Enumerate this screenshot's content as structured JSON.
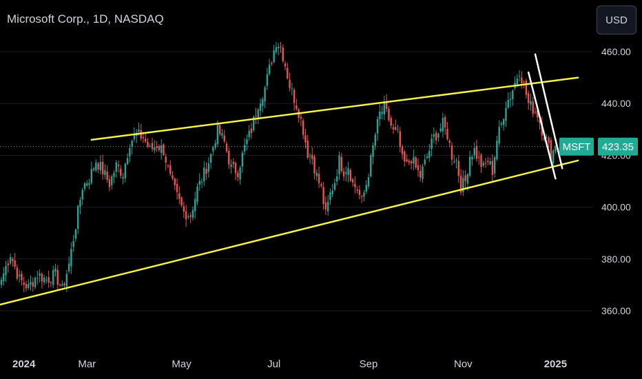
{
  "header": {
    "title": "Microsoft Corp., 1D, NASDAQ",
    "currency": "USD"
  },
  "colors": {
    "background": "#000000",
    "up": "#26a69a",
    "down": "#ef5350",
    "trendline": "#f5f24a",
    "channel": "#ffffff",
    "price_tag": "#22ab94"
  },
  "price_tag": {
    "symbol": "MSFT",
    "price": "423.35",
    "value": 423.35
  },
  "chart_data": {
    "type": "candlestick",
    "symbol": "MSFT",
    "timeframe": "1D",
    "exchange": "NASDAQ",
    "ylim": [
      355,
      470
    ],
    "y_ticks": [
      "460.00",
      "440.00",
      "420.00",
      "400.00",
      "380.00",
      "360.00"
    ],
    "y_tick_values": [
      460,
      440,
      420,
      400,
      380,
      360
    ],
    "x_ticks": [
      {
        "label": "2024",
        "index": 10,
        "bold": true
      },
      {
        "label": "Mar",
        "index": 38,
        "bold": false
      },
      {
        "label": "May",
        "index": 80,
        "bold": false
      },
      {
        "label": "Jul",
        "index": 121,
        "bold": false
      },
      {
        "label": "Sep",
        "index": 163,
        "bold": false
      },
      {
        "label": "Nov",
        "index": 205,
        "bold": false
      },
      {
        "label": "2025",
        "index": 246,
        "bold": true
      }
    ],
    "total_bars": 257,
    "close_anchors": [
      [
        0,
        372
      ],
      [
        4,
        382
      ],
      [
        8,
        372
      ],
      [
        12,
        369
      ],
      [
        16,
        374
      ],
      [
        20,
        372
      ],
      [
        24,
        374
      ],
      [
        27,
        368
      ],
      [
        30,
        378
      ],
      [
        33,
        393
      ],
      [
        36,
        408
      ],
      [
        39,
        411
      ],
      [
        42,
        418
      ],
      [
        45,
        414
      ],
      [
        48,
        409
      ],
      [
        51,
        416
      ],
      [
        54,
        413
      ],
      [
        57,
        425
      ],
      [
        60,
        428
      ],
      [
        63,
        427
      ],
      [
        66,
        422
      ],
      [
        69,
        424
      ],
      [
        72,
        422
      ],
      [
        75,
        411
      ],
      [
        78,
        404
      ],
      [
        81,
        398
      ],
      [
        84,
        397
      ],
      [
        87,
        407
      ],
      [
        90,
        413
      ],
      [
        93,
        420
      ],
      [
        96,
        430
      ],
      [
        99,
        425
      ],
      [
        102,
        415
      ],
      [
        105,
        414
      ],
      [
        108,
        423
      ],
      [
        111,
        430
      ],
      [
        114,
        440
      ],
      [
        117,
        446
      ],
      [
        120,
        457
      ],
      [
        122,
        464
      ],
      [
        124,
        462
      ],
      [
        126,
        455
      ],
      [
        128,
        447
      ],
      [
        130,
        442
      ],
      [
        132,
        437
      ],
      [
        134,
        430
      ],
      [
        136,
        421
      ],
      [
        138,
        419
      ],
      [
        140,
        412
      ],
      [
        142,
        407
      ],
      [
        144,
        397
      ],
      [
        146,
        405
      ],
      [
        148,
        410
      ],
      [
        150,
        418
      ],
      [
        152,
        414
      ],
      [
        154,
        416
      ],
      [
        156,
        409
      ],
      [
        158,
        407
      ],
      [
        160,
        402
      ],
      [
        162,
        409
      ],
      [
        164,
        418
      ],
      [
        166,
        428
      ],
      [
        168,
        436
      ],
      [
        170,
        438
      ],
      [
        172,
        434
      ],
      [
        174,
        429
      ],
      [
        176,
        428
      ],
      [
        178,
        418
      ],
      [
        180,
        416
      ],
      [
        182,
        419
      ],
      [
        184,
        415
      ],
      [
        186,
        412
      ],
      [
        188,
        417
      ],
      [
        190,
        422
      ],
      [
        192,
        427
      ],
      [
        194,
        429
      ],
      [
        196,
        432
      ],
      [
        198,
        428
      ],
      [
        200,
        420
      ],
      [
        202,
        418
      ],
      [
        204,
        408
      ],
      [
        206,
        410
      ],
      [
        208,
        420
      ],
      [
        210,
        422
      ],
      [
        212,
        418
      ],
      [
        214,
        415
      ],
      [
        216,
        418
      ],
      [
        218,
        414
      ],
      [
        220,
        426
      ],
      [
        222,
        432
      ],
      [
        224,
        440
      ],
      [
        226,
        443
      ],
      [
        228,
        448
      ],
      [
        230,
        453
      ],
      [
        232,
        447
      ],
      [
        234,
        440
      ],
      [
        236,
        438
      ],
      [
        238,
        436
      ],
      [
        240,
        430
      ],
      [
        242,
        426
      ],
      [
        244,
        420
      ],
      [
        246,
        423.35
      ]
    ],
    "trendlines": [
      {
        "name": "upper",
        "start": [
          -7,
          365
        ],
        "end": [
          256,
          422
        ],
        "note": ""
      },
      {
        "kind": "upper-resistance",
        "start": [
          40,
          426
        ],
        "end": [
          256,
          450
        ]
      },
      {
        "kind": "lower-support",
        "start": [
          -7,
          361
        ],
        "end": [
          256,
          418
        ]
      },
      {
        "kind": "channel-upper",
        "start": [
          237,
          459
        ],
        "end": [
          249,
          415
        ]
      },
      {
        "kind": "channel-lower",
        "start": [
          234,
          452
        ],
        "end": [
          246,
          411
        ]
      }
    ]
  }
}
